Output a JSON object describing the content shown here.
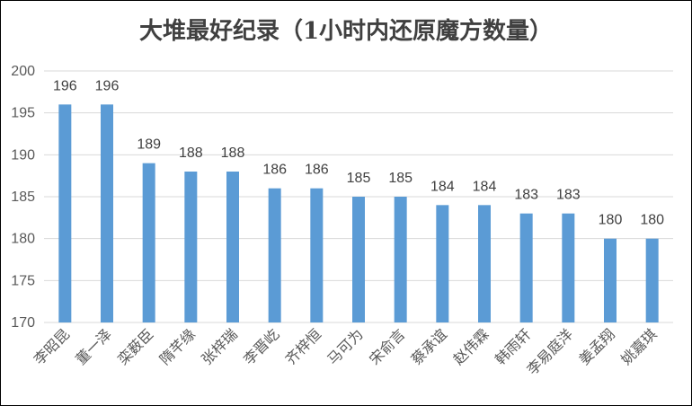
{
  "chart_data": {
    "type": "bar",
    "title": "大堆最好纪录（1小时内还原魔方数量）",
    "categories": [
      "李昭昆",
      "董一泽",
      "栾薮臣",
      "隋芊缘",
      "张梓瑞",
      "李晋屹",
      "齐梓恒",
      "马可为",
      "宋俞言",
      "蔡承谊",
      "赵伟霖",
      "韩雨轩",
      "李易庭洋",
      "姜孟翔",
      "姚嘉琪"
    ],
    "values": [
      196,
      196,
      189,
      188,
      188,
      186,
      186,
      185,
      185,
      184,
      184,
      183,
      183,
      180,
      180
    ],
    "ylim": [
      170,
      200
    ],
    "yticks": [
      170,
      175,
      180,
      185,
      190,
      195,
      200
    ],
    "xlabel": "",
    "ylabel": "",
    "grid": true,
    "bar_color": "#5b9bd5"
  }
}
